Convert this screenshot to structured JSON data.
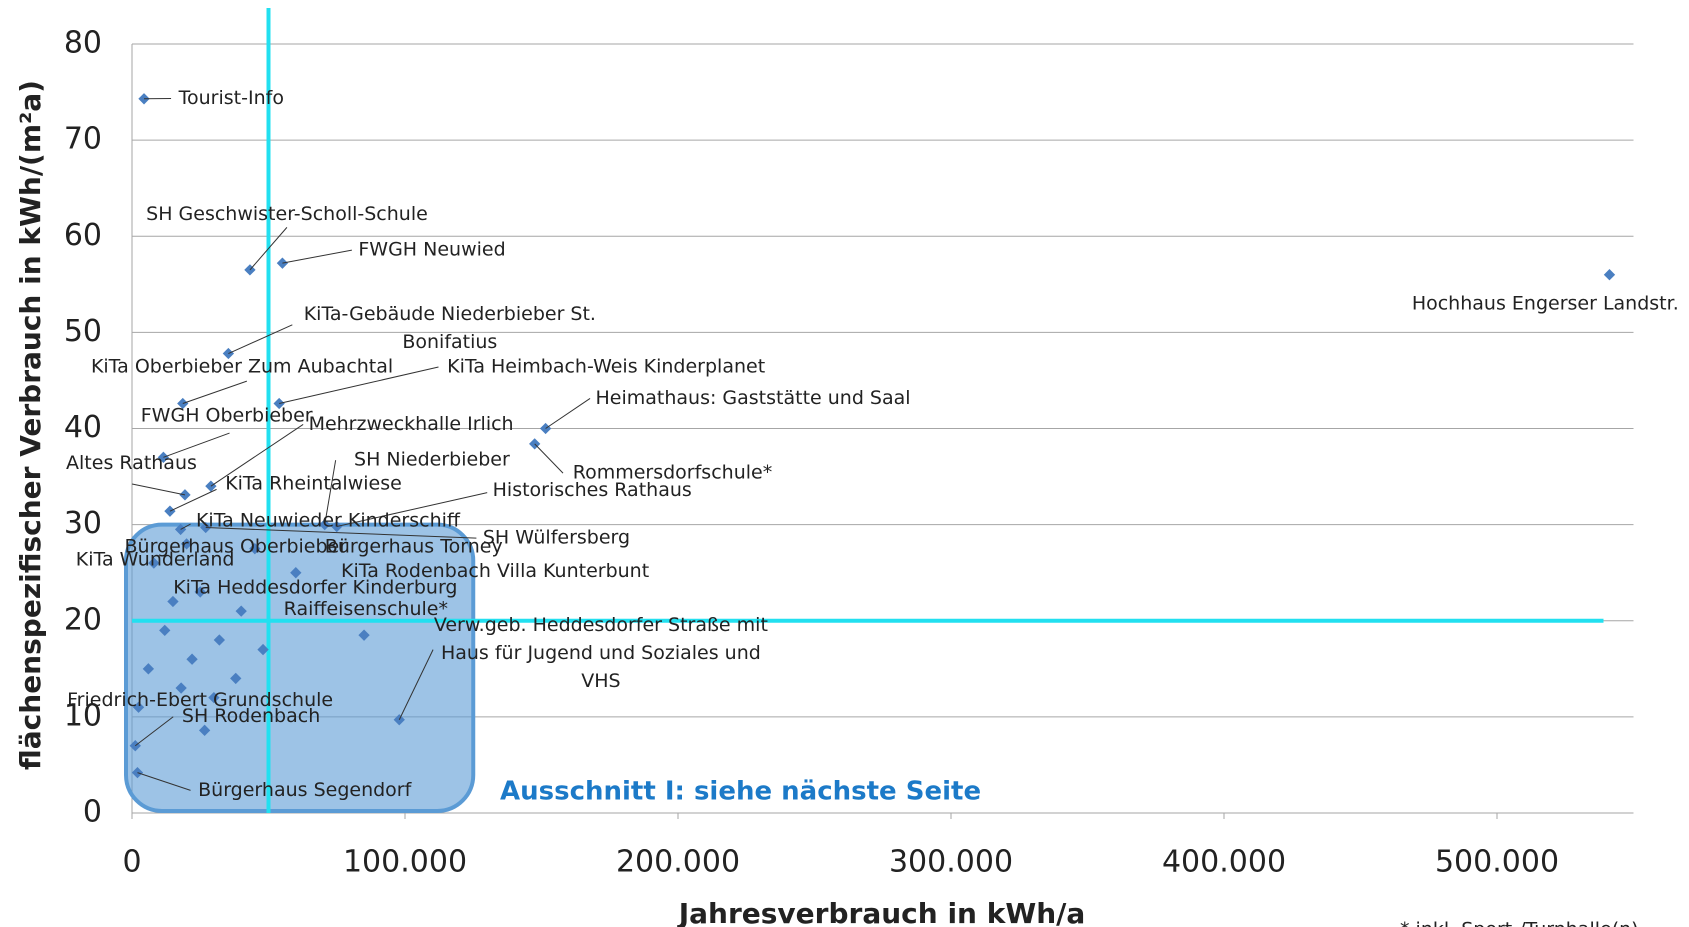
{
  "chart_data": {
    "type": "scatter",
    "x_label": "Jahresverbrauch in kWh/a",
    "y_label": "flächenspezifischer Verbrauch in kWh/(m²a)",
    "annotation": "Ausschnitt I: siehe nächste Seite",
    "footnote": "* inkl. Sport-/Turnhalle(n)",
    "color": "#4a7fc1",
    "reference_color": "#22e0f0",
    "reference_lines": {
      "x": 50000,
      "y": 20
    },
    "highlight": {
      "color": "#5b9bd5",
      "xlim": [
        0,
        125000
      ],
      "ylim": [
        0,
        30
      ]
    },
    "xlim": [
      0,
      550000
    ],
    "xticks": [
      0,
      {
        "value": 100000,
        "label": "100.000"
      },
      {
        "value": 200000,
        "label": "200.000"
      },
      {
        "value": 300000,
        "label": "300.000"
      },
      {
        "value": 400000,
        "label": "400.000"
      },
      {
        "value": 500000,
        "label": "500.000"
      }
    ],
    "ylim": [
      0,
      80
    ],
    "yticks": [
      0,
      10,
      20,
      30,
      40,
      50,
      60,
      70,
      80
    ],
    "grid": true,
    "x": [
      4400,
      43200,
      55100,
      541200,
      35300,
      18600,
      53900,
      151500,
      147500,
      11500,
      28900,
      19400,
      13900,
      70600,
      75000,
      17800,
      27000,
      2000,
      1200,
      2400,
      97900,
      20000,
      45000,
      60000,
      25000,
      40000,
      8000,
      26600,
      15000,
      32000,
      22000,
      38000,
      12000,
      30000,
      48000,
      85000,
      6000,
      18000
    ],
    "values": [
      74.3,
      56.5,
      57.2,
      56,
      47.8,
      42.6,
      42.6,
      40,
      38.4,
      37,
      34,
      33.1,
      31.4,
      30,
      29.8,
      29.5,
      29.7,
      4.2,
      7,
      11,
      9.7,
      28,
      27.5,
      25,
      23,
      21,
      26,
      8.6,
      22,
      18,
      16,
      14,
      19,
      12,
      17,
      18.5,
      15,
      13
    ],
    "point_labels": [
      "Tourist-Info",
      "SH Geschwister-Scholl-Schule",
      "FWGH Neuwied",
      "Hochhaus Engerser Landstr.",
      "KiTa-Gebäude Niederbieber St. Bonifatius",
      "KiTa Oberbieber Zum Aubachtal",
      "KiTa Heimbach-Weis Kinderplanet",
      "Heimathaus: Gaststätte und Saal",
      "Rommersdorfschule*",
      "FWGH Oberbieber",
      "Mehrzweckhalle Irlich",
      "Altes Rathaus",
      "KiTa Rheintalwiese",
      "SH Niederbieber",
      "Historisches Rathaus",
      "KiTa Neuwieder Kinderschiff",
      "SH Wülfersberg",
      "Bürgerhaus Segendorf",
      "SH Rodenbach",
      "Friedrich-Ebert Grundschule",
      "Verw.geb. Heddesdorfer Straße mit Haus für Jugend und Soziales und VHS",
      "Bürgerhaus Oberbieber",
      "Bürgerhaus Torney",
      "KiTa Rodenbach Villa Kunterbunt",
      "KiTa Heddesdorfer Kinderburg",
      "Raiffeisenschule*",
      "KiTa Wunderland",
      null,
      null,
      null,
      null,
      null,
      null,
      null,
      null,
      null,
      null,
      null
    ]
  }
}
